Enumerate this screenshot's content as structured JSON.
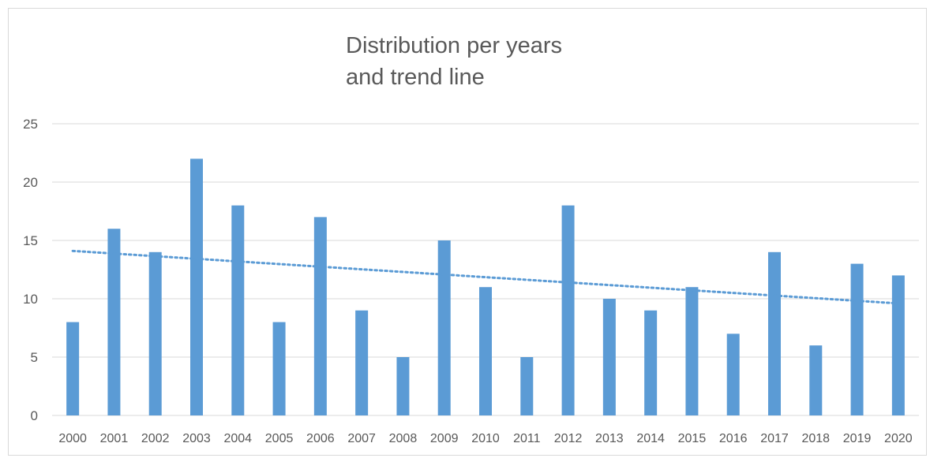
{
  "chart_data": {
    "type": "bar",
    "title": "Distribution per years\nand trend line",
    "xlabel": "",
    "ylabel": "",
    "categories": [
      "2000",
      "2001",
      "2002",
      "2003",
      "2004",
      "2005",
      "2006",
      "2007",
      "2008",
      "2009",
      "2010",
      "2011",
      "2012",
      "2013",
      "2014",
      "2015",
      "2016",
      "2017",
      "2018",
      "2019",
      "2020"
    ],
    "values": [
      8,
      16,
      14,
      22,
      18,
      8,
      17,
      9,
      5,
      15,
      11,
      5,
      18,
      10,
      9,
      11,
      7,
      14,
      6,
      13,
      12
    ],
    "ylim": [
      0,
      25
    ],
    "yticks": [
      0,
      5,
      10,
      15,
      20,
      25
    ],
    "grid": true,
    "trendline": {
      "type": "linear",
      "style": "dotted",
      "start": 14.1,
      "end": 9.6
    },
    "colors": {
      "bar": "#5b9bd5",
      "trend": "#5b9bd5",
      "grid": "#d9d9d9",
      "text": "#595959"
    }
  }
}
